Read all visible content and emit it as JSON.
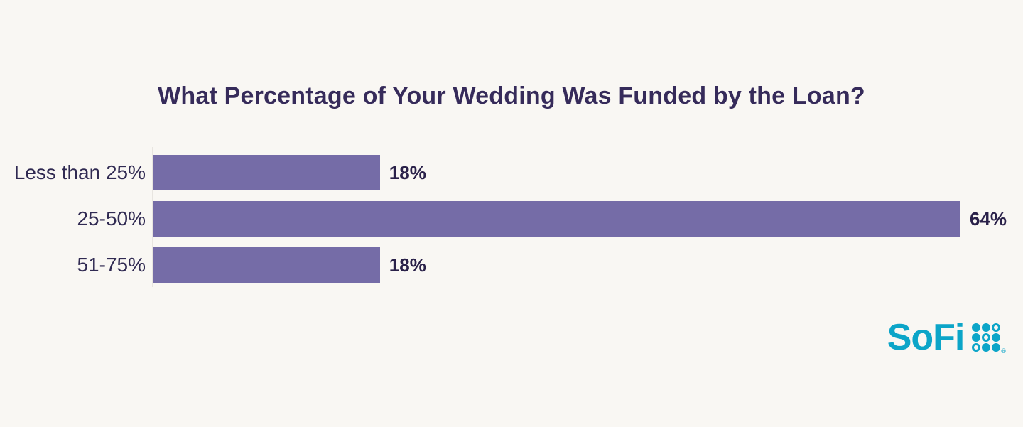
{
  "chart_data": {
    "type": "bar",
    "orientation": "horizontal",
    "title": "What Percentage of Your Wedding Was Funded by the Loan?",
    "categories": [
      "Less than 25%",
      "25-50%",
      "51-75%"
    ],
    "values": [
      18,
      64,
      18
    ],
    "value_labels": [
      "18%",
      "64%",
      "18%"
    ],
    "xlim": [
      0,
      64
    ],
    "grid": false,
    "legend": false,
    "bar_color": "#756CA7",
    "background_color": "#F9F7F3",
    "title_color": "#362B5A"
  },
  "branding": {
    "logo_text": "SoFi",
    "logo_color": "#0CA5C8",
    "trademark": "®"
  }
}
